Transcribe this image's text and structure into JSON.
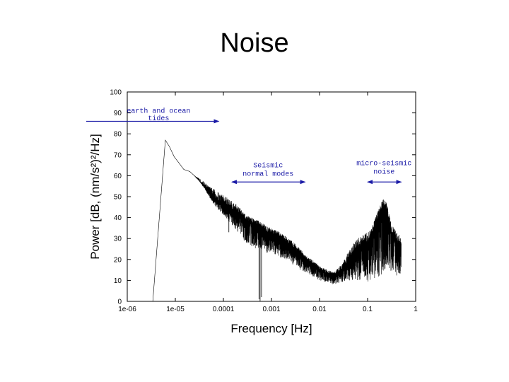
{
  "slide": {
    "title": "Noise"
  },
  "chart_data": {
    "type": "line",
    "xlabel": "Frequency [Hz]",
    "ylabel": "Power [dB, (nm/s²)²/Hz]",
    "x_scale": "log",
    "xlim": [
      1e-06,
      1
    ],
    "ylim": [
      0,
      100
    ],
    "x_ticks": [
      {
        "value": 1e-06,
        "label": "1e-06"
      },
      {
        "value": 1e-05,
        "label": "1e-05"
      },
      {
        "value": 0.0001,
        "label": "0.0001"
      },
      {
        "value": 0.001,
        "label": "0.001"
      },
      {
        "value": 0.01,
        "label": "0.01"
      },
      {
        "value": 0.1,
        "label": "0.1"
      },
      {
        "value": 1,
        "label": "1"
      }
    ],
    "y_ticks": [
      0,
      10,
      20,
      30,
      40,
      50,
      60,
      70,
      80,
      90,
      100
    ],
    "grid": false,
    "series": [
      {
        "color": "#000000",
        "x": [
          3.4e-06,
          6.2e-06,
          7.5e-06,
          9.5e-06,
          1.2e-05,
          1.5e-05,
          2e-05,
          2.5e-05,
          3e-05,
          4e-05,
          5e-05,
          6e-05,
          8e-05,
          0.0001,
          0.00013,
          0.00017,
          0.0002,
          0.00025,
          0.0003,
          0.0004,
          0.0005,
          0.0006,
          0.0008,
          0.001,
          0.0015,
          0.002,
          0.003,
          0.004,
          0.005,
          0.007,
          0.01,
          0.015,
          0.02,
          0.03,
          0.04,
          0.05,
          0.06,
          0.08,
          0.1,
          0.12,
          0.15,
          0.18,
          0.2,
          0.22,
          0.25,
          0.28,
          0.3,
          0.35,
          0.4,
          0.45,
          0.5
        ],
        "y": [
          0,
          77,
          74,
          69,
          66,
          63,
          62,
          60,
          58,
          55,
          52,
          50,
          47,
          46,
          44,
          43,
          42,
          40,
          38,
          37,
          36,
          35,
          33,
          32,
          30,
          28,
          25,
          22,
          20,
          18,
          15,
          13,
          12,
          15,
          20,
          22,
          24,
          26,
          27,
          30,
          35,
          40,
          43,
          44,
          42,
          38,
          34,
          30,
          28,
          27,
          25
        ],
        "spread_lo": [
          0,
          0,
          0,
          0,
          0,
          0,
          0,
          0,
          0,
          1,
          2,
          3,
          4,
          5,
          6,
          8,
          9,
          10,
          10,
          11,
          11,
          10,
          10,
          9,
          9,
          8,
          8,
          7,
          6,
          6,
          5,
          4,
          4,
          6,
          10,
          12,
          14,
          16,
          18,
          20,
          24,
          28,
          30,
          30,
          28,
          24,
          20,
          18,
          16,
          14,
          12
        ],
        "spread_hi": [
          0,
          0,
          0,
          0,
          0,
          0,
          0,
          0,
          1,
          2,
          3,
          4,
          5,
          5,
          5,
          4,
          4,
          3,
          3,
          3,
          3,
          3,
          3,
          3,
          3,
          3,
          3,
          3,
          2,
          2,
          2,
          2,
          2,
          3,
          4,
          5,
          6,
          6,
          6,
          6,
          6,
          6,
          5,
          5,
          5,
          5,
          5,
          5,
          5,
          5,
          5
        ],
        "min_drops": [
          {
            "x": 0.00013,
            "y": 33
          },
          {
            "x": 0.00055,
            "y": 1
          },
          {
            "x": 0.00058,
            "y": 0
          },
          {
            "x": 0.00062,
            "y": 2
          }
        ]
      }
    ],
    "annotations": [
      {
        "lines": [
          "earth and ocean",
          "tides"
        ],
        "x_from": 1e-07,
        "x_to": 8e-05,
        "y": 86,
        "label_x": 4.5e-06,
        "label_y": [
          90,
          86.5
        ],
        "arrow": "right"
      },
      {
        "lines": [
          "Seismic",
          "normal modes"
        ],
        "x_from": 0.00015,
        "x_to": 0.005,
        "y": 57,
        "label_x": 0.00085,
        "label_y": [
          64,
          60
        ],
        "arrow": "both"
      },
      {
        "lines": [
          "micro-seismic",
          "noise"
        ],
        "x_from": 0.1,
        "x_to": 0.5,
        "y": 57,
        "label_x": 0.22,
        "label_y": [
          65,
          61
        ],
        "arrow": "both"
      }
    ]
  }
}
